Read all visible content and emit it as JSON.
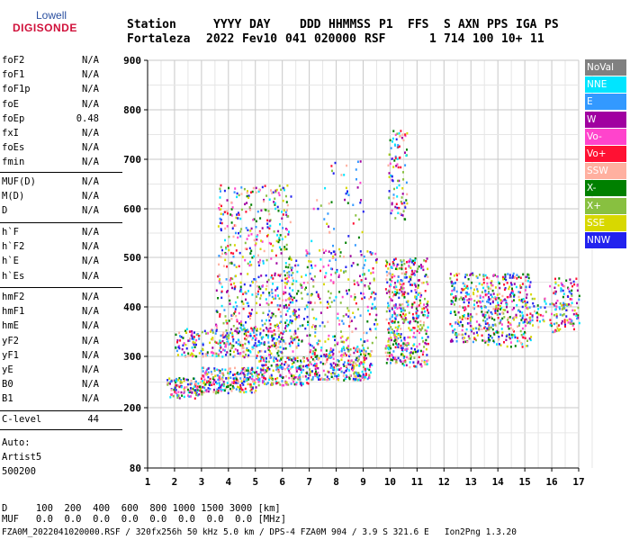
{
  "logo": {
    "top": "Lowell",
    "bottom": "DIGISONDE"
  },
  "header": {
    "labels": [
      "Station",
      "YYYY",
      "DAY",
      "DDD",
      "HHMMSS",
      "P1",
      "FFS",
      "S",
      "AXN",
      "PPS",
      "IGA",
      "PS"
    ],
    "values": [
      "Fortaleza",
      "2022",
      "Fev10",
      "041",
      "020000",
      "RSF",
      "",
      "1",
      "714",
      "100",
      "10+",
      "11"
    ]
  },
  "params": [
    {
      "name": "foF2",
      "value": "N/A"
    },
    {
      "name": "foF1",
      "value": "N/A"
    },
    {
      "name": "foF1p",
      "value": "N/A"
    },
    {
      "name": "foE",
      "value": "N/A"
    },
    {
      "name": "foEp",
      "value": "0.48"
    },
    {
      "name": "fxI",
      "value": "N/A"
    },
    {
      "name": "foEs",
      "value": "N/A"
    },
    {
      "name": "fmin",
      "value": "N/A"
    },
    {
      "name": "MUF(D)",
      "value": "N/A"
    },
    {
      "name": "M(D)",
      "value": "N/A"
    },
    {
      "name": "D",
      "value": "N/A"
    },
    {
      "name": "h`F",
      "value": "N/A"
    },
    {
      "name": "h`F2",
      "value": "N/A"
    },
    {
      "name": "h`E",
      "value": "N/A"
    },
    {
      "name": "h`Es",
      "value": "N/A"
    },
    {
      "name": "hmF2",
      "value": "N/A"
    },
    {
      "name": "hmF1",
      "value": "N/A"
    },
    {
      "name": "hmE",
      "value": "N/A"
    },
    {
      "name": "yF2",
      "value": "N/A"
    },
    {
      "name": "yF1",
      "value": "N/A"
    },
    {
      "name": "yE",
      "value": "N/A"
    },
    {
      "name": "B0",
      "value": "N/A"
    },
    {
      "name": "B1",
      "value": "N/A"
    },
    {
      "name": "C-level",
      "value": "44"
    }
  ],
  "auto": {
    "label": "Auto:",
    "artist": "Artist5",
    "version": "500200"
  },
  "legend": [
    {
      "label": "NoVal",
      "color": "#808080"
    },
    {
      "label": "NNE",
      "color": "#00e5ff"
    },
    {
      "label": "E",
      "color": "#3399ff"
    },
    {
      "label": "W",
      "color": "#a000a0"
    },
    {
      "label": "Vo-",
      "color": "#ff44cc"
    },
    {
      "label": "Vo+",
      "color": "#ff1133"
    },
    {
      "label": "SSW",
      "color": "#ffb0a0"
    },
    {
      "label": "X-",
      "color": "#008000"
    },
    {
      "label": "X+",
      "color": "#88c040"
    },
    {
      "label": "SSE",
      "color": "#d8d800"
    },
    {
      "label": "NNW",
      "color": "#2222ee"
    }
  ],
  "bottom_table": {
    "d_row": "D     100  200  400  600  800 1000 1500 3000 [km]",
    "muf_row": "MUF   0.0  0.0  0.0  0.0  0.0  0.0  0.0  0.0 [MHz]"
  },
  "footer": "FZA0M_2022041020000.RSF / 320fx256h 50 kHz 5.0 km / DPS-4 FZA0M 904 / 3.9 S 321.6 E   Ion2Png 1.3.20",
  "chart_data": {
    "type": "scatter",
    "xlabel": "",
    "ylabel": "",
    "xlim": [
      1,
      17
    ],
    "ylim": [
      80,
      900
    ],
    "xticks": [
      1,
      2,
      3,
      4,
      5,
      6,
      7,
      8,
      9,
      10,
      11,
      12,
      13,
      14,
      15,
      16,
      17
    ],
    "yticks": [
      80,
      200,
      300,
      400,
      500,
      600,
      700,
      800,
      900
    ],
    "grid": true,
    "legend_position": "right",
    "clusters": [
      {
        "x": [
          1.7,
          3.0
        ],
        "y": [
          220,
          260
        ],
        "density": 0.85
      },
      {
        "x": [
          3.0,
          5.0
        ],
        "y": [
          230,
          280
        ],
        "density": 0.8
      },
      {
        "x": [
          5.0,
          7.0
        ],
        "y": [
          245,
          300
        ],
        "density": 0.75
      },
      {
        "x": [
          7.0,
          9.3
        ],
        "y": [
          255,
          320
        ],
        "density": 0.7
      },
      {
        "x": [
          2.0,
          6.0
        ],
        "y": [
          300,
          360
        ],
        "density": 0.4
      },
      {
        "x": [
          3.5,
          6.5
        ],
        "y": [
          310,
          470
        ],
        "density": 0.22
      },
      {
        "x": [
          3.6,
          6.3
        ],
        "y": [
          480,
          650
        ],
        "density": 0.2
      },
      {
        "x": [
          6.0,
          9.5
        ],
        "y": [
          320,
          520
        ],
        "density": 0.18
      },
      {
        "x": [
          7.0,
          9.0
        ],
        "y": [
          520,
          700
        ],
        "density": 0.05
      },
      {
        "x": [
          9.8,
          11.4
        ],
        "y": [
          280,
          500
        ],
        "density": 0.5
      },
      {
        "x": [
          9.9,
          10.6
        ],
        "y": [
          580,
          760
        ],
        "density": 0.28
      },
      {
        "x": [
          12.2,
          13.6
        ],
        "y": [
          330,
          470
        ],
        "density": 0.45
      },
      {
        "x": [
          13.6,
          15.2
        ],
        "y": [
          320,
          470
        ],
        "density": 0.45
      },
      {
        "x": [
          15.2,
          15.8
        ],
        "y": [
          360,
          420
        ],
        "density": 0.3
      },
      {
        "x": [
          15.9,
          17.0
        ],
        "y": [
          350,
          460
        ],
        "density": 0.4
      }
    ]
  }
}
